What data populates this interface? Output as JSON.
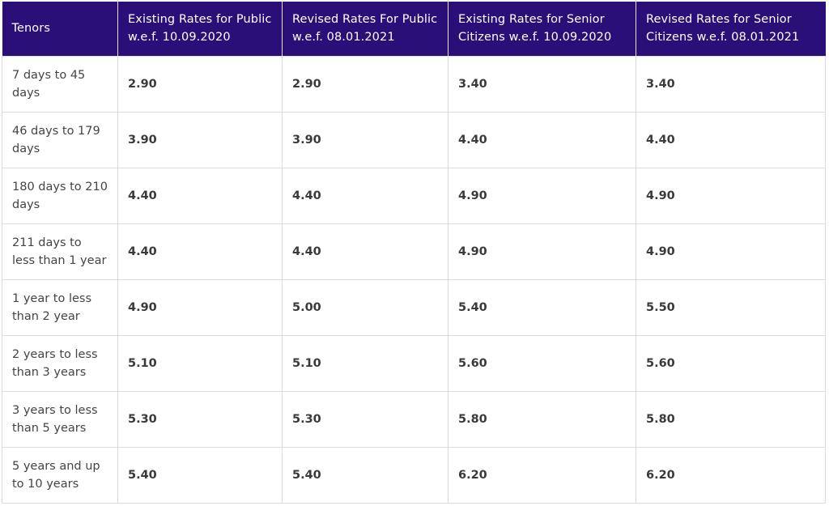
{
  "table": {
    "headers": [
      "Tenors",
      "Existing Rates for Public w.e.f. 10.09.2020",
      "Revised Rates For Public w.e.f. 08.01.2021",
      "Existing Rates for Senior Citizens w.e.f. 10.09.2020",
      "Revised Rates for Senior Citizens w.e.f. 08.01.2021"
    ],
    "rows": [
      [
        "7 days to 45 days",
        "2.90",
        "2.90",
        "3.40",
        "3.40"
      ],
      [
        "46 days to 179 days",
        "3.90",
        "3.90",
        "4.40",
        "4.40"
      ],
      [
        "180 days to 210 days",
        "4.40",
        "4.40",
        "4.90",
        "4.90"
      ],
      [
        "211 days to less than 1 year",
        "4.40",
        "4.40",
        "4.90",
        "4.90"
      ],
      [
        "1 year to less than 2 year",
        "4.90",
        "5.00",
        "5.40",
        "5.50"
      ],
      [
        "2 years to less than 3 years",
        "5.10",
        "5.10",
        "5.60",
        "5.60"
      ],
      [
        "3 years to less than 5 years",
        "5.30",
        "5.30",
        "5.80",
        "5.80"
      ],
      [
        "5 years and up to 10 years",
        "5.40",
        "5.40",
        "6.20",
        "6.20"
      ]
    ]
  },
  "colors": {
    "header_bg": "#2a0f78",
    "header_text": "#ffffff",
    "border": "#dcdcdc"
  }
}
